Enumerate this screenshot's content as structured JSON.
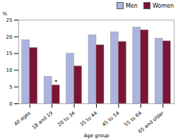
{
  "chart_data": {
    "type": "bar",
    "categories": [
      "All ages",
      "18 and 19",
      "20 to 34",
      "35 to 44",
      "45 to 54",
      "55 to 64",
      "65 and older"
    ],
    "series": [
      {
        "name": "Men",
        "color": "#aab4de",
        "values": [
          19.0,
          8.1,
          15.0,
          20.5,
          21.4,
          22.8,
          19.5
        ]
      },
      {
        "name": "Women",
        "color": "#7b1535",
        "values": [
          16.7,
          5.5,
          11.2,
          17.5,
          18.5,
          22.0,
          18.7
        ]
      }
    ],
    "xlabel": "Age group",
    "ylabel": "%",
    "ylim": [
      0,
      25
    ],
    "yticks": [
      0,
      5,
      10,
      15,
      20,
      25
    ],
    "grid": false,
    "legend": "upper right",
    "annotations": [
      {
        "text": "*",
        "category": "18 and 19",
        "series": "Women"
      }
    ]
  }
}
